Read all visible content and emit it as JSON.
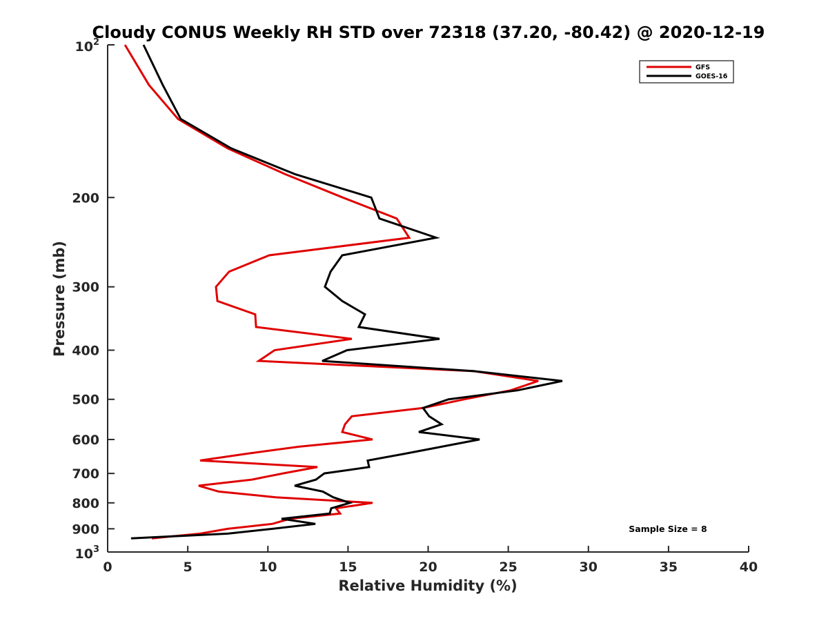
{
  "chart_data": {
    "type": "line",
    "title": "Cloudy CONUS Weekly RH STD over 72318 (37.20, -80.42) @ 2020-12-19",
    "xlabel": "Relative Humidity (%)",
    "ylabel": "Pressure (mb)",
    "xlim": [
      0,
      40
    ],
    "ylim": [
      1000,
      100
    ],
    "yscale": "log",
    "y_reversed": true,
    "grid": false,
    "x_ticks": [
      0,
      5,
      10,
      15,
      20,
      25,
      30,
      35,
      40
    ],
    "x_tick_labels": [
      "0",
      "5",
      "10",
      "15",
      "20",
      "25",
      "30",
      "35",
      "40"
    ],
    "y_ticks": [
      100,
      200,
      300,
      400,
      500,
      600,
      700,
      800,
      900,
      1000
    ],
    "y_tick_labels": [
      {
        "base": "10",
        "exp": "2"
      },
      {
        "text": "200"
      },
      {
        "text": "300"
      },
      {
        "text": "400"
      },
      {
        "text": "500"
      },
      {
        "text": "600"
      },
      {
        "text": "700"
      },
      {
        "text": "800"
      },
      {
        "text": "900"
      },
      {
        "base": "10",
        "exp": "3"
      }
    ],
    "legend_placement": "top-right",
    "annotation": "Sample Size = 8",
    "series": [
      {
        "name": "GFS",
        "color": "#e00000",
        "pressure": [
          100,
          120,
          140,
          160,
          180,
          200,
          220,
          240,
          260,
          280,
          300,
          320,
          340,
          360,
          380,
          400,
          420,
          440,
          460,
          480,
          500,
          520,
          540,
          560,
          580,
          600,
          620,
          640,
          660,
          680,
          700,
          720,
          740,
          760,
          780,
          800,
          820,
          840,
          860,
          880,
          900,
          920,
          940
        ],
        "values": [
          1.08,
          2.58,
          4.39,
          7.49,
          11.1,
          14.68,
          18.04,
          18.82,
          10.08,
          7.58,
          6.76,
          6.85,
          9.21,
          9.26,
          15.24,
          10.42,
          9.43,
          22.86,
          26.87,
          25.15,
          22.26,
          19.68,
          15.24,
          14.81,
          14.64,
          16.53,
          11.93,
          8.7,
          5.77,
          13.09,
          10.94,
          9.0,
          5.68,
          6.93,
          10.5,
          16.53,
          14.25,
          14.51,
          11.37,
          10.29,
          7.49,
          5.77,
          2.76
        ]
      },
      {
        "name": "GOES-16",
        "color": "#000000",
        "pressure": [
          100,
          120,
          140,
          160,
          180,
          200,
          220,
          240,
          260,
          280,
          300,
          320,
          340,
          360,
          380,
          400,
          420,
          440,
          460,
          480,
          500,
          520,
          540,
          560,
          580,
          600,
          620,
          640,
          660,
          680,
          700,
          720,
          740,
          760,
          780,
          800,
          820,
          840,
          860,
          880,
          900,
          920,
          940
        ],
        "values": [
          2.24,
          3.44,
          4.56,
          7.71,
          11.71,
          16.45,
          16.96,
          20.5,
          14.64,
          13.91,
          13.56,
          14.64,
          16.06,
          15.67,
          20.71,
          14.94,
          13.39,
          22.86,
          28.37,
          25.58,
          21.27,
          19.68,
          20.06,
          20.84,
          19.42,
          23.21,
          20.84,
          18.56,
          16.23,
          16.32,
          13.52,
          13.0,
          11.67,
          13.43,
          14.08,
          15.11,
          13.95,
          13.86,
          10.85,
          12.96,
          10.29,
          7.49,
          1.46
        ]
      }
    ]
  }
}
